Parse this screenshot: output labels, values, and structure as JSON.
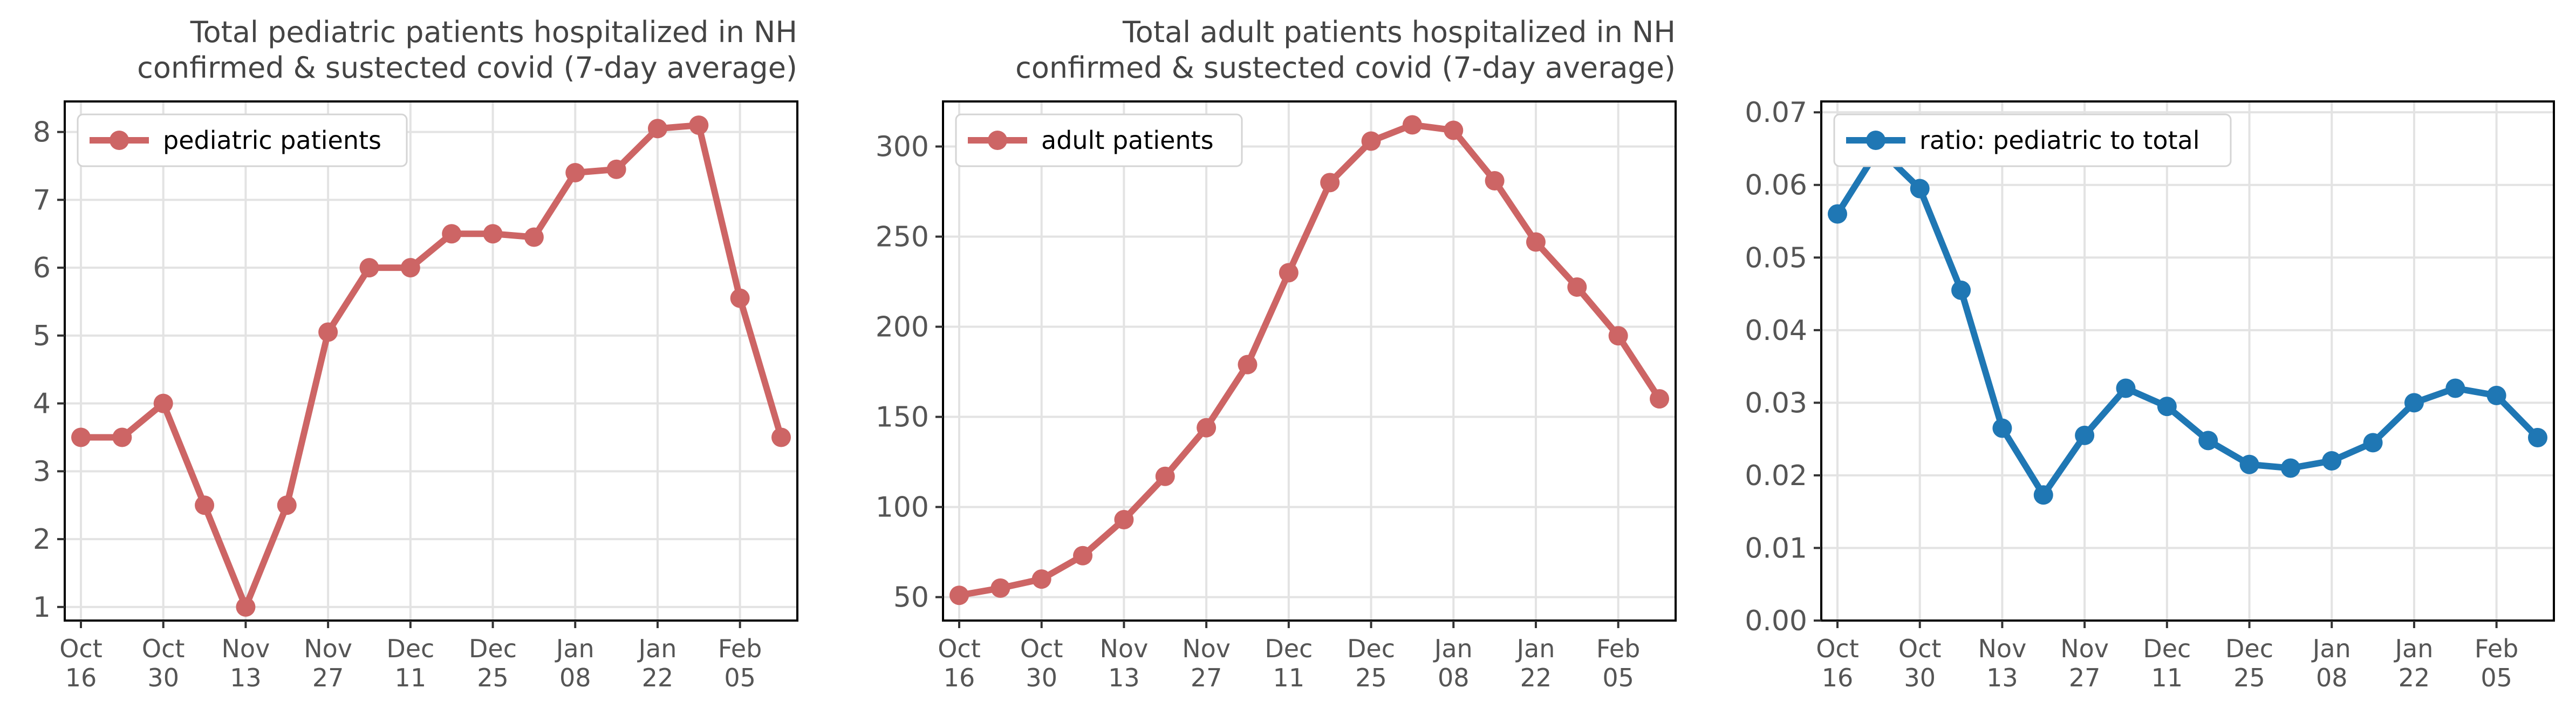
{
  "chart_data": [
    {
      "type": "line",
      "title": [
        "Total pediatric patients hospitalized in NH",
        "confirmed & sustected covid (7-day average)"
      ],
      "x": [
        "2021-10-16",
        "2021-10-23",
        "2021-10-30",
        "2021-11-06",
        "2021-11-13",
        "2021-11-20",
        "2021-11-27",
        "2021-12-04",
        "2021-12-11",
        "2021-12-18",
        "2021-12-25",
        "2022-01-01",
        "2022-01-08",
        "2022-01-15",
        "2022-01-22",
        "2022-01-29",
        "2022-02-05",
        "2022-02-12"
      ],
      "x_tick_dates": [
        "2021-10-16",
        "2021-10-30",
        "2021-11-13",
        "2021-11-27",
        "2021-12-11",
        "2021-12-25",
        "2022-01-08",
        "2022-01-22",
        "2022-02-05"
      ],
      "x_tick_labels": [
        [
          "Oct",
          "16"
        ],
        [
          "Oct",
          "30"
        ],
        [
          "Nov",
          "13"
        ],
        [
          "Nov",
          "27"
        ],
        [
          "Dec",
          "11"
        ],
        [
          "Dec",
          "25"
        ],
        [
          "Jan",
          "08"
        ],
        [
          "Jan",
          "22"
        ],
        [
          "Feb",
          "05"
        ]
      ],
      "xlim": [
        "2021-10-16",
        "2022-02-12"
      ],
      "series": [
        {
          "name": "pediatric patients",
          "color": "#cd6565",
          "values": [
            3.5,
            3.5,
            4.0,
            2.5,
            1.0,
            2.5,
            5.05,
            6.0,
            6.0,
            6.5,
            6.5,
            6.45,
            7.4,
            7.45,
            8.05,
            8.1,
            5.55,
            3.5
          ]
        }
      ],
      "ylim": [
        0.8,
        8.45
      ],
      "yticks": [
        1,
        2,
        3,
        4,
        5,
        6,
        7,
        8
      ],
      "ytick_labels": [
        "1",
        "2",
        "3",
        "4",
        "5",
        "6",
        "7",
        "8"
      ],
      "grid": true,
      "legend_position": "top-left"
    },
    {
      "type": "line",
      "title": [
        "Total adult patients hospitalized in NH",
        "confirmed & sustected covid (7-day average)"
      ],
      "x": [
        "2021-10-16",
        "2021-10-23",
        "2021-10-30",
        "2021-11-06",
        "2021-11-13",
        "2021-11-20",
        "2021-11-27",
        "2021-12-04",
        "2021-12-11",
        "2021-12-18",
        "2021-12-25",
        "2022-01-01",
        "2022-01-08",
        "2022-01-15",
        "2022-01-22",
        "2022-01-29",
        "2022-02-05",
        "2022-02-12"
      ],
      "x_tick_dates": [
        "2021-10-16",
        "2021-10-30",
        "2021-11-13",
        "2021-11-27",
        "2021-12-11",
        "2021-12-25",
        "2022-01-08",
        "2022-01-22",
        "2022-02-05"
      ],
      "x_tick_labels": [
        [
          "Oct",
          "16"
        ],
        [
          "Oct",
          "30"
        ],
        [
          "Nov",
          "13"
        ],
        [
          "Nov",
          "27"
        ],
        [
          "Dec",
          "11"
        ],
        [
          "Dec",
          "25"
        ],
        [
          "Jan",
          "08"
        ],
        [
          "Jan",
          "22"
        ],
        [
          "Feb",
          "05"
        ]
      ],
      "xlim": [
        "2021-10-16",
        "2022-02-12"
      ],
      "series": [
        {
          "name": "adult patients",
          "color": "#cd6565",
          "values": [
            51,
            55,
            60,
            73,
            93,
            117,
            144,
            179,
            230,
            280,
            303,
            312,
            309,
            281,
            247,
            222,
            195,
            160
          ]
        }
      ],
      "ylim": [
        37,
        325
      ],
      "yticks": [
        50,
        100,
        150,
        200,
        250,
        300
      ],
      "ytick_labels": [
        "50",
        "100",
        "150",
        "200",
        "250",
        "300"
      ],
      "grid": true,
      "legend_position": "top-left"
    },
    {
      "type": "line",
      "title": [],
      "x": [
        "2021-10-16",
        "2021-10-23",
        "2021-10-30",
        "2021-11-06",
        "2021-11-13",
        "2021-11-20",
        "2021-11-27",
        "2021-12-04",
        "2021-12-11",
        "2021-12-18",
        "2021-12-25",
        "2022-01-01",
        "2022-01-08",
        "2022-01-15",
        "2022-01-22",
        "2022-01-29",
        "2022-02-05",
        "2022-02-12"
      ],
      "x_tick_dates": [
        "2021-10-16",
        "2021-10-30",
        "2021-11-13",
        "2021-11-27",
        "2021-12-11",
        "2021-12-25",
        "2022-01-08",
        "2022-01-22",
        "2022-02-05"
      ],
      "x_tick_labels": [
        [
          "Oct",
          "16"
        ],
        [
          "Oct",
          "30"
        ],
        [
          "Nov",
          "13"
        ],
        [
          "Nov",
          "27"
        ],
        [
          "Dec",
          "11"
        ],
        [
          "Dec",
          "25"
        ],
        [
          "Jan",
          "08"
        ],
        [
          "Jan",
          "22"
        ],
        [
          "Feb",
          "05"
        ]
      ],
      "xlim": [
        "2021-10-16",
        "2022-02-12"
      ],
      "series": [
        {
          "name": "ratio: pediatric to total",
          "color": "#1f77b4",
          "values": [
            0.056,
            0.065,
            0.0595,
            0.0455,
            0.0265,
            0.0173,
            0.0255,
            0.032,
            0.0295,
            0.0248,
            0.0215,
            0.021,
            0.022,
            0.0245,
            0.03,
            0.032,
            0.031,
            0.0252
          ]
        }
      ],
      "ylim": [
        0,
        0.0715
      ],
      "yticks": [
        0,
        0.01,
        0.02,
        0.03,
        0.04,
        0.05,
        0.06,
        0.07
      ],
      "ytick_labels": [
        "0.00",
        "0.01",
        "0.02",
        "0.03",
        "0.04",
        "0.05",
        "0.06",
        "0.07"
      ],
      "grid": true,
      "legend_position": "top-left"
    }
  ]
}
